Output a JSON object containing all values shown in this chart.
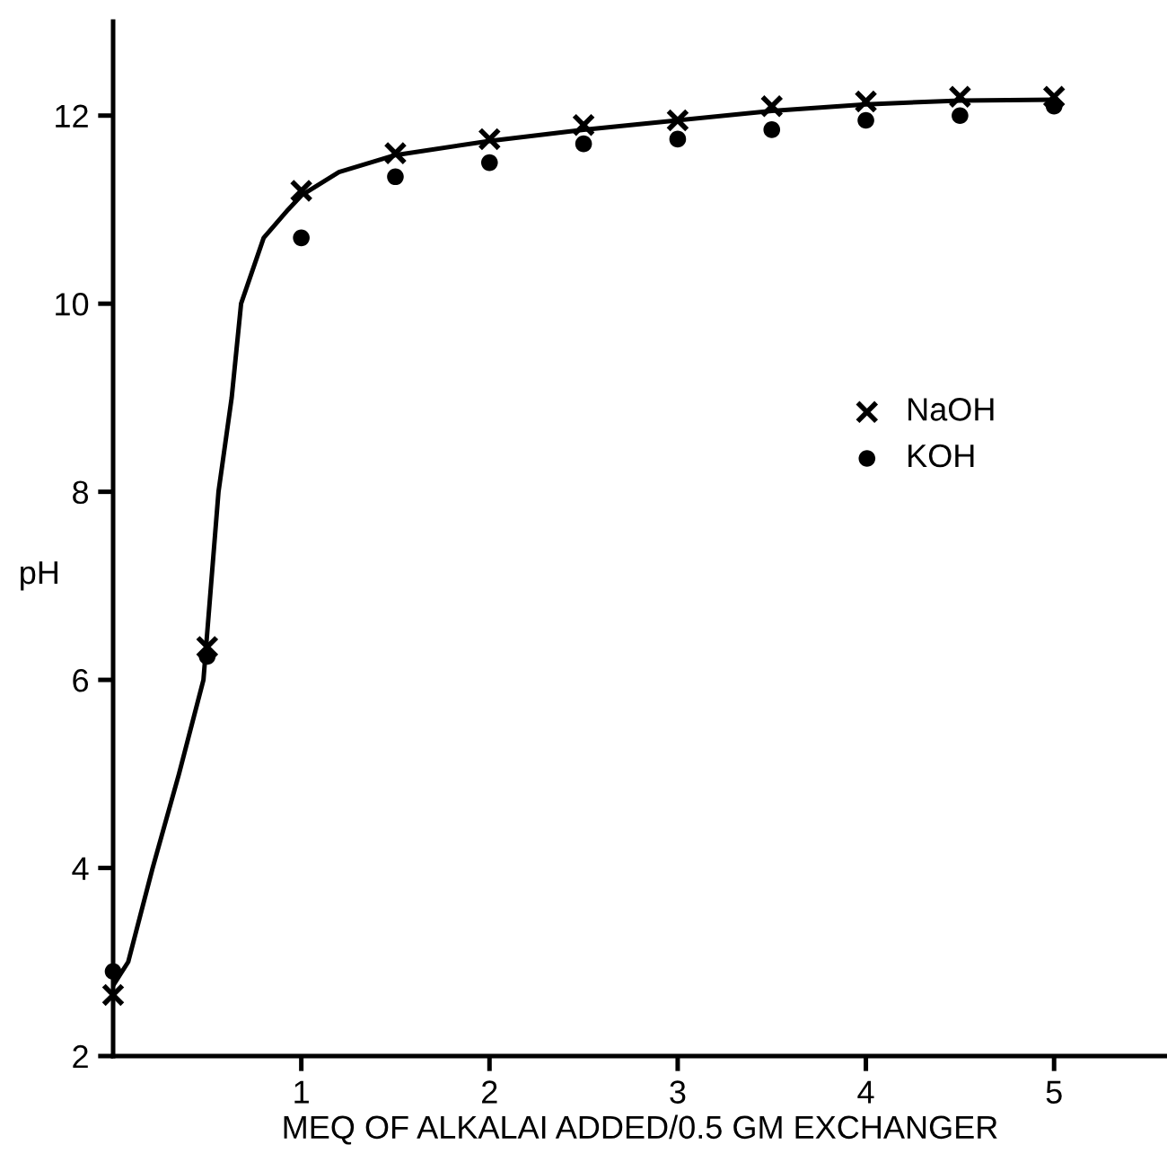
{
  "chart_data": {
    "type": "scatter",
    "xlabel": "MEQ OF ALKALAI ADDED/0.5 GM EXCHANGER",
    "ylabel": "pH",
    "x": [
      0,
      0.5,
      1,
      1.5,
      2,
      2.5,
      3,
      3.5,
      4,
      4.5,
      5
    ],
    "xlim": [
      0,
      5.6
    ],
    "xticks": [
      1,
      2,
      3,
      4,
      5
    ],
    "ylim": [
      2,
      13
    ],
    "yticks": [
      2,
      4,
      6,
      8,
      10,
      12
    ],
    "grid": false,
    "legend": "center right",
    "series": [
      {
        "name": "NaOH",
        "color": "#000000",
        "marker": "cross",
        "values": [
          2.65,
          6.35,
          11.2,
          11.6,
          11.75,
          11.9,
          11.95,
          12.1,
          12.15,
          12.2,
          12.2
        ]
      },
      {
        "name": "KOH",
        "color": "#000000",
        "marker": "circle",
        "values": [
          2.9,
          6.25,
          10.7,
          11.35,
          11.5,
          11.7,
          11.75,
          11.85,
          11.95,
          12.0,
          12.1
        ]
      },
      {
        "type": "line",
        "color": "#000000",
        "marker": "none",
        "line_style": "solid",
        "x": [
          0,
          0.08,
          0.21,
          0.35,
          0.48,
          0.52,
          0.56,
          0.63,
          0.68,
          0.8,
          0.93,
          1.0,
          1.2,
          1.5,
          2,
          2.5,
          3,
          3.5,
          4,
          4.5,
          5
        ],
        "values": [
          2.75,
          3,
          4,
          5,
          6,
          7,
          8,
          9,
          10,
          10.7,
          11,
          11.15,
          11.4,
          11.58,
          11.73,
          11.85,
          11.95,
          12.05,
          12.12,
          12.16,
          12.17
        ]
      }
    ]
  }
}
